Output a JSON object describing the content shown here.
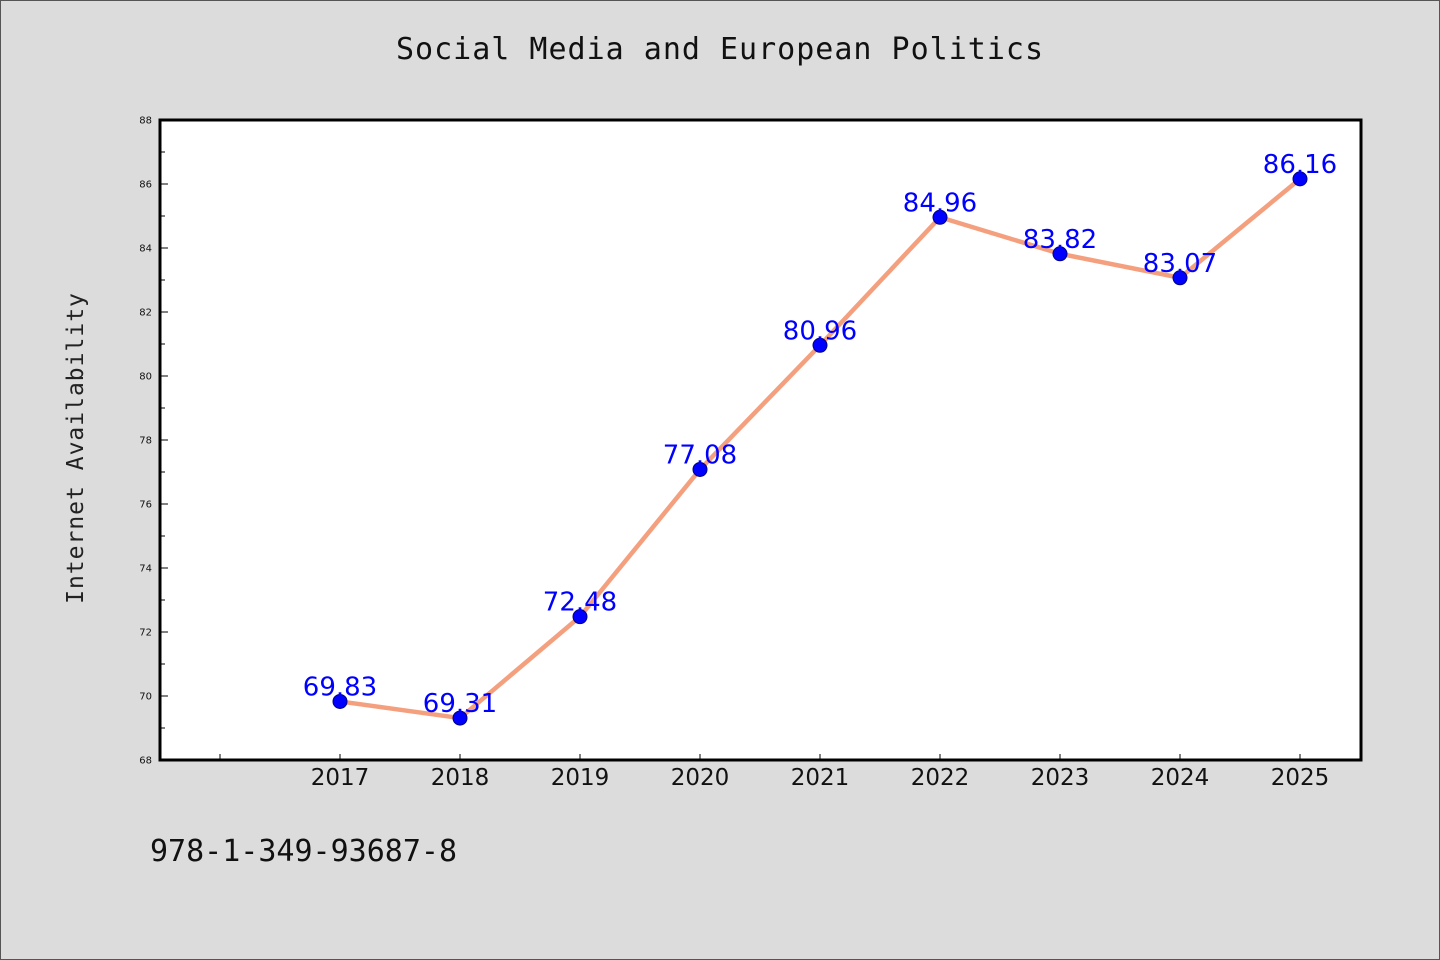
{
  "chart_data": {
    "type": "line",
    "title": "Social Media and European Politics",
    "xlabel": "",
    "ylabel": "Internet Availability",
    "categories": [
      "2017",
      "2018",
      "2019",
      "2020",
      "2021",
      "2022",
      "2023",
      "2024",
      "2025"
    ],
    "series": [
      {
        "values": [
          69.83,
          69.31,
          72.48,
          77.08,
          80.96,
          84.96,
          83.82,
          83.07,
          86.16
        ],
        "labels": [
          "69.83",
          "69.31",
          "72.48",
          "77.08",
          "80.96",
          "84.96",
          "83.82",
          "83.07",
          "86.16"
        ]
      }
    ],
    "ylim": [
      68,
      88
    ],
    "y_ticks": [
      "68",
      "70",
      "72",
      "74",
      "76",
      "78",
      "80",
      "82",
      "84",
      "86",
      "88"
    ],
    "grid": false,
    "colors": {
      "line": "#f4a07e",
      "marker": "#0000ff",
      "marker_edge": "#000080",
      "data_label": "#0000ff",
      "background": "#dcdcdc",
      "plot_background": "#ffffff"
    }
  },
  "footer": {
    "isbn": "978-1-349-93687-8"
  }
}
